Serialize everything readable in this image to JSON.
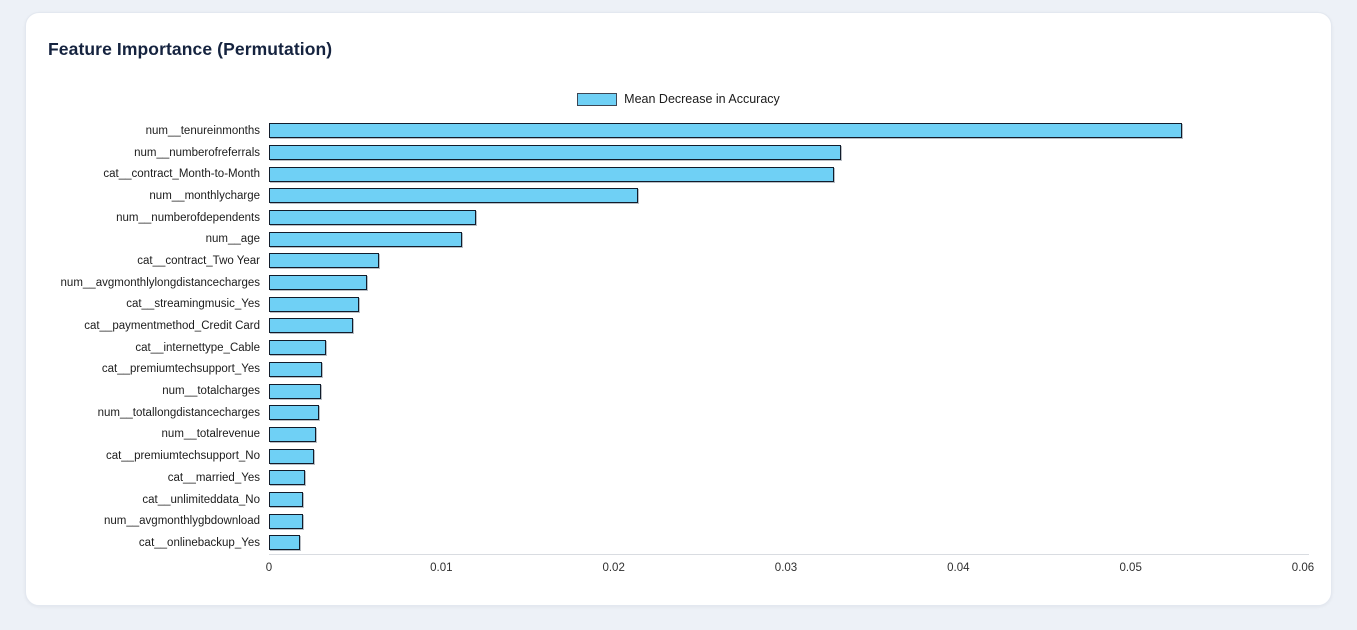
{
  "page": {
    "background_color": "#edf1f7",
    "card_background": "#ffffff"
  },
  "card": {
    "title": "Feature Importance (Permutation)",
    "title_color": "#15233f"
  },
  "legend": {
    "label": "Mean Decrease in Accuracy",
    "swatch_color": "#6fd0f5",
    "swatch_border_color": "#3d4654",
    "position": "top-center"
  },
  "chart_data": {
    "type": "bar",
    "orientation": "horizontal",
    "title": "Feature Importance (Permutation)",
    "xlabel": "",
    "ylabel": "",
    "legend_entries": [
      "Mean Decrease in Accuracy"
    ],
    "legend_position": "top-center",
    "grid": false,
    "xlim": [
      0,
      0.06
    ],
    "x_tick_values": [
      0,
      0.01,
      0.02,
      0.03,
      0.04,
      0.05,
      0.06
    ],
    "x_tick_labels": [
      "0",
      "0.01",
      "0.02",
      "0.03",
      "0.04",
      "0.05",
      "0.06"
    ],
    "bar_color": "#6fd0f5",
    "bar_edge_color": "#111c2b",
    "categories": [
      "num__tenureinmonths",
      "num__numberofreferrals",
      "cat__contract_Month-to-Month",
      "num__monthlycharge",
      "num__numberofdependents",
      "num__age",
      "cat__contract_Two Year",
      "num__avgmonthlylongdistancecharges",
      "cat__streamingmusic_Yes",
      "cat__paymentmethod_Credit Card",
      "cat__internettype_Cable",
      "cat__premiumtechsupport_Yes",
      "num__totalcharges",
      "num__totallongdistancecharges",
      "num__totalrevenue",
      "cat__premiumtechsupport_No",
      "cat__married_Yes",
      "cat__unlimiteddata_No",
      "num__avgmonthlygbdownload",
      "cat__onlinebackup_Yes"
    ],
    "values": [
      0.053,
      0.0332,
      0.0328,
      0.0214,
      0.012,
      0.0112,
      0.0064,
      0.0057,
      0.0052,
      0.0049,
      0.0033,
      0.0031,
      0.003,
      0.0029,
      0.0027,
      0.0026,
      0.0021,
      0.002,
      0.002,
      0.0018
    ]
  }
}
